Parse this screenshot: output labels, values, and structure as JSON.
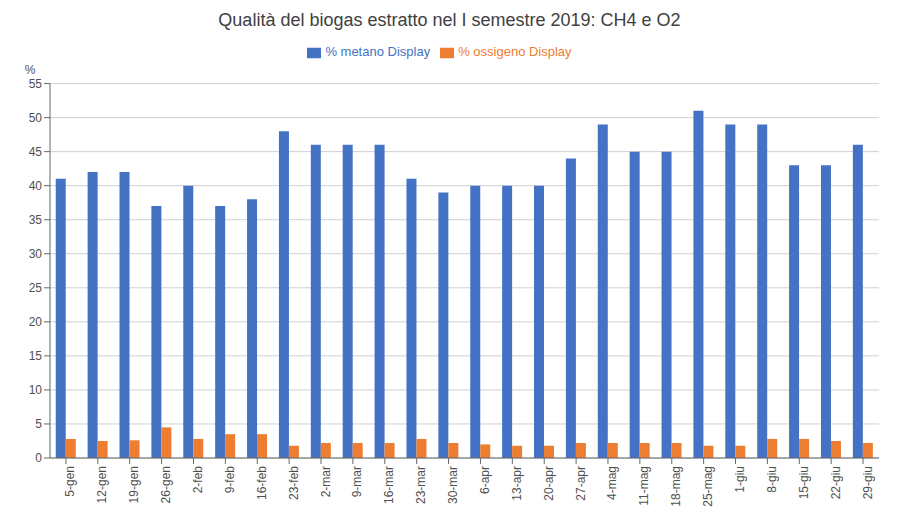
{
  "chart_data": {
    "type": "bar",
    "title": "Qualità del biogas estratto nel I semestre 2019: CH4 e O2",
    "ylabel": "%",
    "categories": [
      "5-gen",
      "12-gen",
      "19-gen",
      "26-gen",
      "2-feb",
      "9-feb",
      "16-feb",
      "23-feb",
      "2-mar",
      "9-mar",
      "16-mar",
      "23-mar",
      "30-mar",
      "6-apr",
      "13-apr",
      "20-apr",
      "27-apr",
      "4-mag",
      "11-mag",
      "18-mag",
      "25-mag",
      "1-giu",
      "8-giu",
      "15-giu",
      "22-giu",
      "29-giu"
    ],
    "series": [
      {
        "name": "% metano Display",
        "color": "#4472C4",
        "values": [
          41,
          42,
          42,
          37,
          40,
          37,
          38,
          48,
          46,
          46,
          46,
          41,
          39,
          40,
          40,
          40,
          44,
          49,
          45,
          45,
          51,
          49,
          49,
          43,
          43,
          46
        ]
      },
      {
        "name": "% ossigeno Display",
        "color": "#ED7D31",
        "values": [
          2.8,
          2.5,
          2.6,
          4.5,
          2.8,
          3.5,
          3.5,
          1.8,
          2.2,
          2.2,
          2.2,
          2.8,
          2.2,
          2.0,
          1.8,
          1.8,
          2.2,
          2.2,
          2.2,
          2.2,
          1.8,
          1.8,
          2.8,
          2.8,
          2.5,
          2.2
        ]
      }
    ],
    "ylim": [
      0,
      55
    ],
    "yticks": [
      0,
      5,
      10,
      15,
      20,
      25,
      30,
      35,
      40,
      45,
      50,
      55
    ],
    "grid": true,
    "legend": "top"
  }
}
